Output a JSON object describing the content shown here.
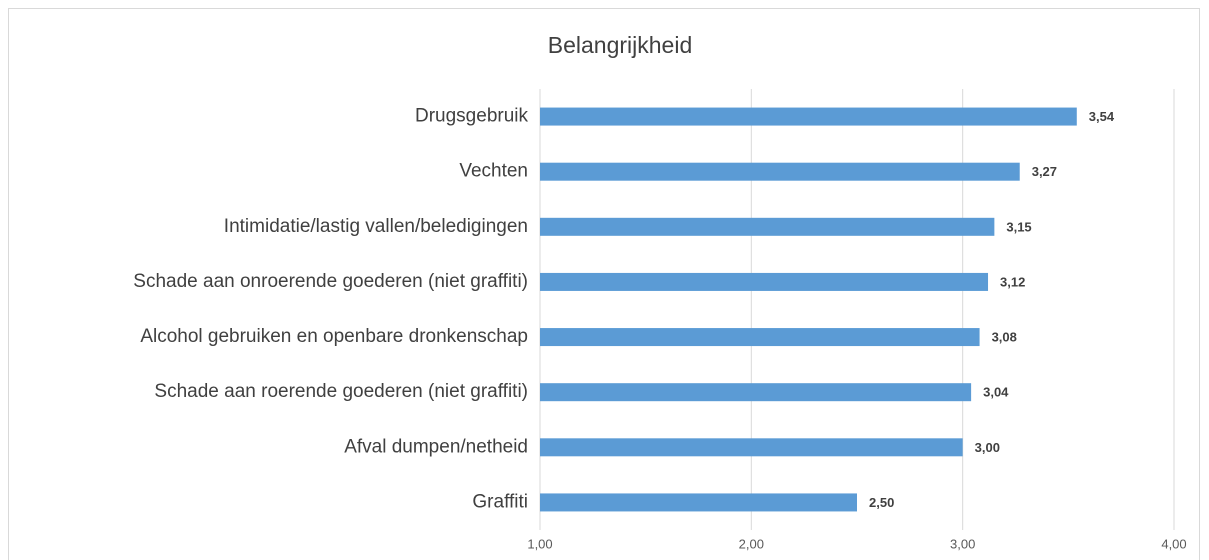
{
  "chart_data": {
    "type": "bar",
    "orientation": "horizontal",
    "title": "Belangrijkheid",
    "categories": [
      "Drugsgebruik",
      "Vechten",
      "Intimidatie/lastig vallen/beledigingen",
      "Schade aan onroerende goederen (niet graffiti)",
      "Alcohol gebruiken en openbare dronkenschap",
      "Schade aan roerende goederen (niet graffiti)",
      "Afval dumpen/netheid",
      "Graffiti"
    ],
    "values": [
      3.54,
      3.27,
      3.15,
      3.12,
      3.08,
      3.04,
      3.0,
      2.5
    ],
    "value_labels": [
      "3,54",
      "3,27",
      "3,15",
      "3,12",
      "3,08",
      "3,04",
      "3,00",
      "2,50"
    ],
    "color": "#5b9bd5",
    "xlim": [
      1,
      4
    ],
    "xticks": [
      {
        "value": 1,
        "label": "1,00"
      },
      {
        "value": 2,
        "label": "2,00"
      },
      {
        "value": 3,
        "label": "3,00"
      },
      {
        "value": 4,
        "label": "4,00"
      }
    ],
    "grid": true
  }
}
